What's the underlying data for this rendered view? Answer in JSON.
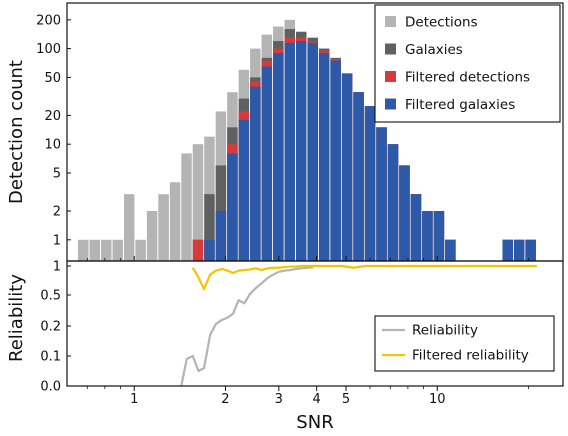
{
  "chart_data": [
    {
      "type": "bar",
      "ylabel": "Detection count",
      "yscale": "log",
      "ylim": [
        0.6,
        300
      ],
      "yticks": [
        "1",
        "2",
        "5",
        "10",
        "20",
        "50",
        "100",
        "200"
      ],
      "xscale": "log",
      "xlim": [
        0.6,
        26
      ],
      "legend_position": "top-right",
      "bin_edges": [
        0.652,
        0.712,
        0.777,
        0.848,
        0.925,
        1.009,
        1.101,
        1.201,
        1.311,
        1.43,
        1.56,
        1.702,
        1.857,
        2.026,
        2.211,
        2.412,
        2.632,
        2.872,
        3.134,
        3.419,
        3.73,
        4.07,
        4.441,
        4.845,
        5.286,
        5.768,
        6.293,
        6.866,
        7.492,
        8.174,
        8.919,
        9.731,
        10.617,
        11.584,
        12.639,
        13.79,
        15.046,
        16.417,
        17.912,
        19.543,
        21.324
      ],
      "series": [
        {
          "name": "Detections",
          "color": "#b4b4b4",
          "values": [
            1,
            1,
            1,
            1,
            3,
            1,
            2,
            3,
            4,
            8,
            10,
            12,
            22,
            35,
            60,
            100,
            140,
            170,
            200,
            150,
            130,
            100,
            80,
            55,
            35,
            25,
            15,
            10,
            6,
            3,
            2,
            2,
            1,
            0,
            0,
            0,
            0,
            1,
            1,
            1
          ]
        },
        {
          "name": "Galaxies",
          "color": "#606060",
          "values": [
            0,
            0,
            0,
            0,
            0,
            0,
            0,
            0,
            0,
            0,
            1,
            3,
            6,
            15,
            30,
            50,
            80,
            120,
            160,
            150,
            130,
            100,
            80,
            55,
            35,
            25,
            15,
            10,
            6,
            3,
            2,
            2,
            1,
            0,
            0,
            0,
            0,
            1,
            1,
            1
          ]
        },
        {
          "name": "Filtered detections",
          "color": "#d63a3a",
          "values": [
            0,
            0,
            0,
            0,
            0,
            0,
            0,
            0,
            0,
            0,
            1,
            1,
            2,
            10,
            22,
            45,
            75,
            100,
            130,
            130,
            120,
            95,
            78,
            55,
            35,
            25,
            15,
            10,
            6,
            3,
            2,
            2,
            1,
            0,
            0,
            0,
            0,
            1,
            1,
            1
          ]
        },
        {
          "name": "Filtered galaxies",
          "color": "#2c5aa8",
          "values": [
            0,
            0,
            0,
            0,
            0,
            0,
            0,
            0,
            0,
            0,
            0,
            1,
            2,
            8,
            18,
            40,
            65,
            90,
            115,
            120,
            115,
            90,
            75,
            55,
            35,
            25,
            15,
            10,
            6,
            3,
            2,
            2,
            1,
            0,
            0,
            0,
            0,
            1,
            1,
            1
          ]
        }
      ]
    },
    {
      "type": "line",
      "xlabel": "SNR",
      "ylabel": "Reliability",
      "xscale": "log",
      "xlim": [
        0.6,
        26
      ],
      "xticks": [
        "1",
        "2",
        "3",
        "4",
        "5",
        "10"
      ],
      "yticks": [
        "0.0",
        "0.1",
        "0.2",
        "0.5",
        "1"
      ],
      "legend_position": "bottom-right",
      "series": [
        {
          "name": "Reliability",
          "color": "#b4b4b4",
          "x": [
            1.43,
            1.49,
            1.56,
            1.63,
            1.7,
            1.78,
            1.86,
            1.95,
            2.03,
            2.12,
            2.21,
            2.31,
            2.41,
            2.52,
            2.63,
            2.75,
            2.87,
            3.0,
            3.13,
            3.27,
            3.42,
            3.57,
            3.73,
            3.9
          ],
          "y": [
            0.0,
            0.09,
            0.1,
            0.05,
            0.06,
            0.17,
            0.22,
            0.26,
            0.28,
            0.32,
            0.45,
            0.42,
            0.52,
            0.62,
            0.7,
            0.79,
            0.85,
            0.9,
            0.92,
            0.93,
            0.95,
            0.96,
            0.97,
            0.98
          ]
        },
        {
          "name": "Filtered reliability",
          "color": "#f2c500",
          "x": [
            1.56,
            1.63,
            1.7,
            1.78,
            1.86,
            1.95,
            2.03,
            2.12,
            2.21,
            2.31,
            2.41,
            2.52,
            2.63,
            2.75,
            2.87,
            3.0,
            3.13,
            3.27,
            3.42,
            3.57,
            3.73,
            3.9,
            4.07,
            4.44,
            4.85,
            5.29,
            5.77,
            6.29,
            8.17,
            10.62,
            13.79,
            17.91,
            21.32
          ],
          "y": [
            0.97,
            0.8,
            0.6,
            0.85,
            0.92,
            0.95,
            0.92,
            0.88,
            0.92,
            0.93,
            0.94,
            0.96,
            0.93,
            0.96,
            0.97,
            0.97,
            0.98,
            0.99,
            0.99,
            1.0,
            1.0,
            1.0,
            1.0,
            1.0,
            1.0,
            0.97,
            1.0,
            1.0,
            1.0,
            1.0,
            1.0,
            1.0,
            1.0
          ]
        }
      ]
    }
  ]
}
